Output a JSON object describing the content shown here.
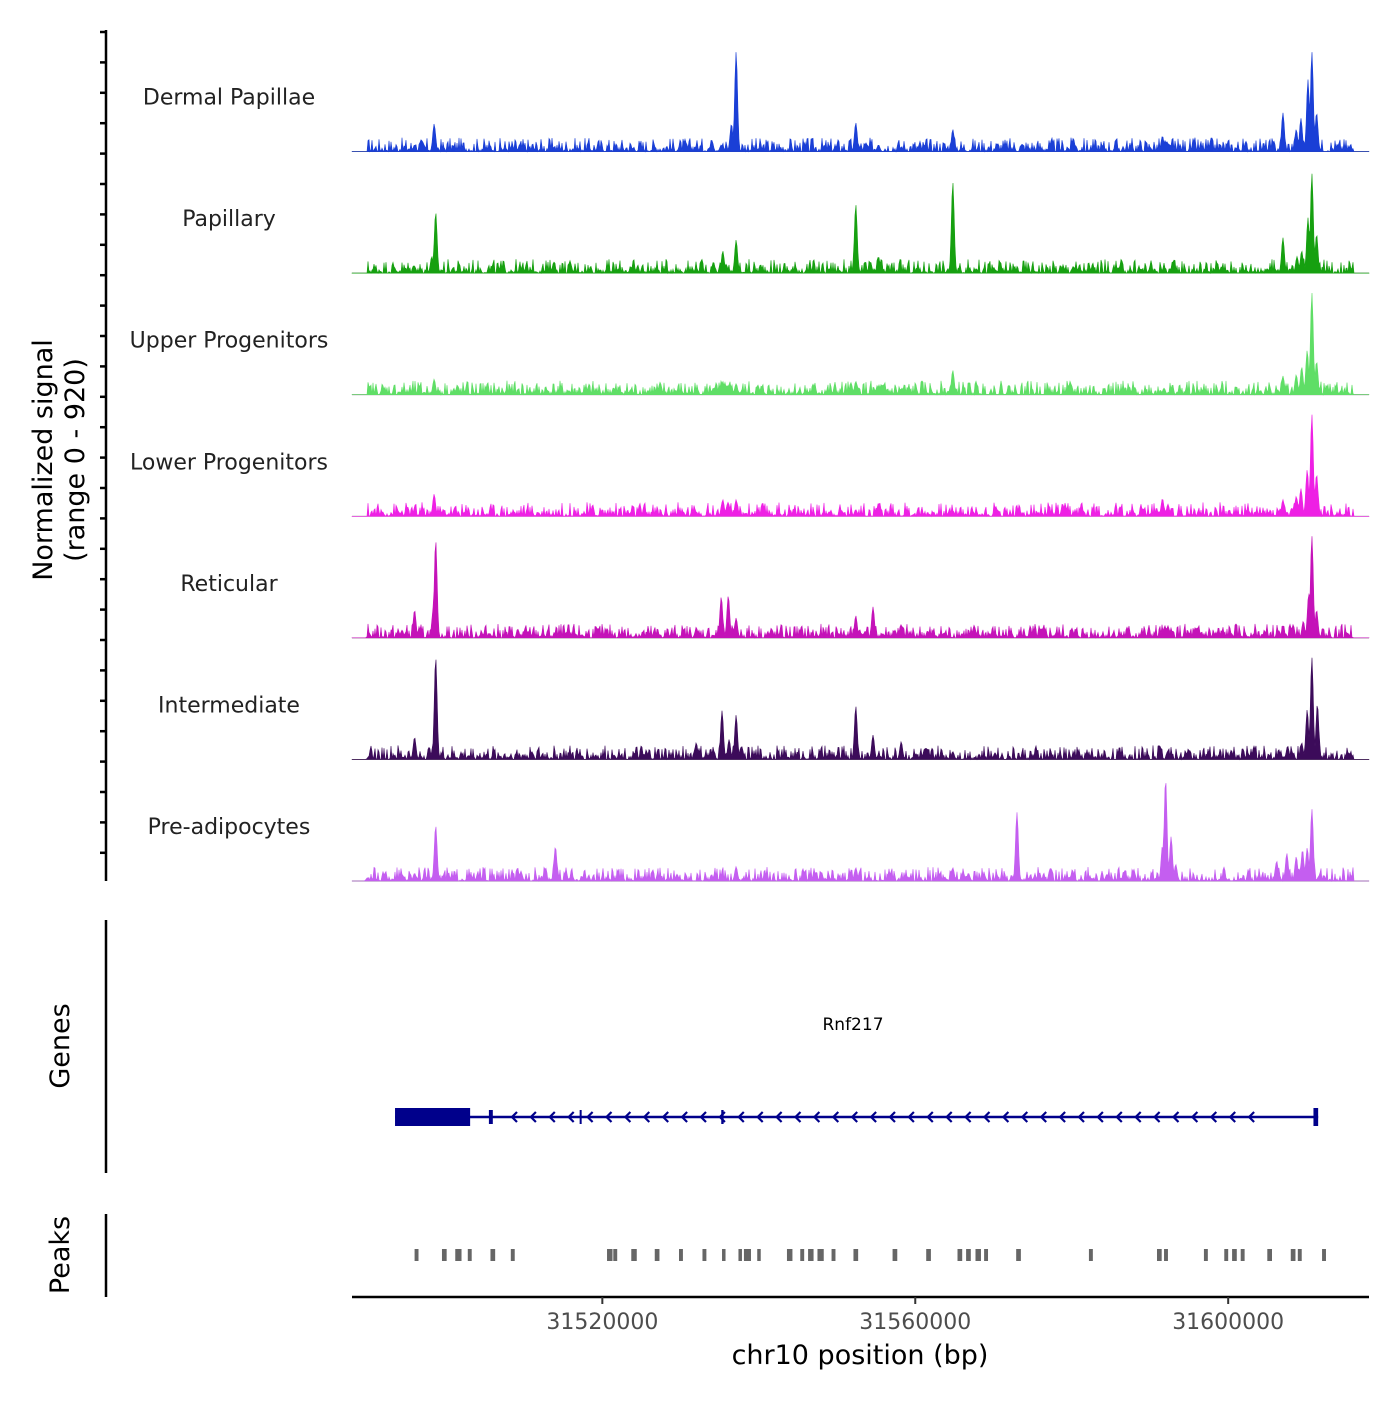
{
  "chart_data": {
    "type": "area",
    "title": "",
    "region": {
      "chrom": "chr10",
      "start": 31488000,
      "end": 31618000
    },
    "xlabel": "chr10 position (bp)",
    "x_ticks": [
      31520000,
      31560000,
      31600000
    ],
    "x_tick_labels": [
      "31520000",
      "31560000",
      "31600000"
    ],
    "ylabel_line1": "Normalized signal",
    "ylabel_line2": "(range 0 - 920)",
    "ylim": [
      0,
      920
    ],
    "tracks": [
      {
        "name": "Dermal Papillae",
        "color": "#1a3fd6",
        "peaks": [
          [
            31496000,
            60
          ],
          [
            31498500,
            250
          ],
          [
            31513800,
            40
          ],
          [
            31532000,
            50
          ],
          [
            31534000,
            100
          ],
          [
            31535200,
            60
          ],
          [
            31536500,
            250
          ],
          [
            31537100,
            900
          ],
          [
            31552400,
            260
          ],
          [
            31555300,
            60
          ],
          [
            31558200,
            40
          ],
          [
            31564800,
            200
          ],
          [
            31568000,
            25
          ],
          [
            31570500,
            40
          ],
          [
            31580200,
            120
          ],
          [
            31590000,
            40
          ],
          [
            31591600,
            140
          ],
          [
            31592600,
            60
          ],
          [
            31599000,
            30
          ],
          [
            31607000,
            350
          ],
          [
            31608700,
            200
          ],
          [
            31609300,
            300
          ],
          [
            31610200,
            650
          ],
          [
            31610700,
            900
          ],
          [
            31611300,
            350
          ]
        ]
      },
      {
        "name": "Papillary",
        "color": "#16a010",
        "peaks": [
          [
            31496000,
            60
          ],
          [
            31498200,
            150
          ],
          [
            31498700,
            550
          ],
          [
            31511000,
            30
          ],
          [
            31513800,
            100
          ],
          [
            31532000,
            50
          ],
          [
            31534200,
            100
          ],
          [
            31535400,
            200
          ],
          [
            31537100,
            300
          ],
          [
            31549000,
            40
          ],
          [
            31552400,
            620
          ],
          [
            31555300,
            150
          ],
          [
            31564800,
            820
          ],
          [
            31567800,
            40
          ],
          [
            31580200,
            60
          ],
          [
            31590000,
            40
          ],
          [
            31591800,
            60
          ],
          [
            31599000,
            30
          ],
          [
            31605000,
            40
          ],
          [
            31607000,
            320
          ],
          [
            31608800,
            150
          ],
          [
            31609400,
            200
          ],
          [
            31610200,
            500
          ],
          [
            31610700,
            900
          ],
          [
            31611300,
            350
          ]
        ]
      },
      {
        "name": "Upper Progenitors",
        "color": "#5fde66",
        "peaks": [
          [
            31498500,
            140
          ],
          [
            31534200,
            60
          ],
          [
            31535400,
            120
          ],
          [
            31537100,
            100
          ],
          [
            31552400,
            120
          ],
          [
            31555300,
            70
          ],
          [
            31558300,
            60
          ],
          [
            31564800,
            220
          ],
          [
            31591800,
            60
          ],
          [
            31607000,
            170
          ],
          [
            31608700,
            180
          ],
          [
            31609400,
            250
          ],
          [
            31610100,
            400
          ],
          [
            31610700,
            920
          ],
          [
            31611300,
            300
          ]
        ]
      },
      {
        "name": "Lower Progenitors",
        "color": "#ee20e4",
        "peaks": [
          [
            31496000,
            60
          ],
          [
            31498500,
            200
          ],
          [
            31532000,
            40
          ],
          [
            31535400,
            150
          ],
          [
            31537100,
            150
          ],
          [
            31549000,
            40
          ],
          [
            31552400,
            60
          ],
          [
            31555300,
            120
          ],
          [
            31564800,
            50
          ],
          [
            31591600,
            160
          ],
          [
            31592300,
            110
          ],
          [
            31607000,
            150
          ],
          [
            31608700,
            180
          ],
          [
            31609300,
            250
          ],
          [
            31610100,
            420
          ],
          [
            31610700,
            920
          ],
          [
            31611300,
            380
          ]
        ]
      },
      {
        "name": "Reticular",
        "color": "#c412b8",
        "peaks": [
          [
            31490200,
            40
          ],
          [
            31494400,
            70
          ],
          [
            31496000,
            250
          ],
          [
            31498400,
            280
          ],
          [
            31498700,
            880
          ],
          [
            31505600,
            40
          ],
          [
            31511000,
            30
          ],
          [
            31516500,
            40
          ],
          [
            31522500,
            30
          ],
          [
            31525800,
            40
          ],
          [
            31532000,
            80
          ],
          [
            31535200,
            370
          ],
          [
            31536100,
            380
          ],
          [
            31537100,
            180
          ],
          [
            31550200,
            40
          ],
          [
            31552400,
            200
          ],
          [
            31553600,
            60
          ],
          [
            31554600,
            280
          ],
          [
            31557400,
            70
          ],
          [
            31558200,
            120
          ],
          [
            31563600,
            40
          ],
          [
            31567800,
            40
          ],
          [
            31570200,
            40
          ],
          [
            31580200,
            40
          ],
          [
            31589000,
            40
          ],
          [
            31591600,
            70
          ],
          [
            31592300,
            110
          ],
          [
            31600400,
            40
          ],
          [
            31603300,
            40
          ],
          [
            31606500,
            60
          ],
          [
            31607300,
            40
          ],
          [
            31608300,
            120
          ],
          [
            31609600,
            150
          ],
          [
            31610300,
            400
          ],
          [
            31610700,
            920
          ],
          [
            31611300,
            250
          ],
          [
            31615300,
            40
          ]
        ]
      },
      {
        "name": "Intermediate",
        "color": "#3c0b5a",
        "peaks": [
          [
            31490200,
            30
          ],
          [
            31493400,
            30
          ],
          [
            31496000,
            200
          ],
          [
            31498400,
            150
          ],
          [
            31498700,
            920
          ],
          [
            31511000,
            70
          ],
          [
            31515800,
            50
          ],
          [
            31521500,
            40
          ],
          [
            31532000,
            150
          ],
          [
            31534200,
            80
          ],
          [
            31535300,
            440
          ],
          [
            31536200,
            180
          ],
          [
            31537100,
            400
          ],
          [
            31549400,
            30
          ],
          [
            31552400,
            480
          ],
          [
            31554600,
            220
          ],
          [
            31558200,
            160
          ],
          [
            31564800,
            70
          ],
          [
            31570200,
            60
          ],
          [
            31580200,
            40
          ],
          [
            31591300,
            120
          ],
          [
            31592300,
            80
          ],
          [
            31600400,
            80
          ],
          [
            31602500,
            60
          ],
          [
            31603300,
            120
          ],
          [
            31606500,
            70
          ],
          [
            31607600,
            120
          ],
          [
            31609400,
            150
          ],
          [
            31610100,
            450
          ],
          [
            31610700,
            920
          ],
          [
            31611400,
            500
          ],
          [
            31615300,
            60
          ]
        ]
      },
      {
        "name": "Pre-adipocytes",
        "color": "#c45ef0",
        "peaks": [
          [
            31490000,
            30
          ],
          [
            31494400,
            60
          ],
          [
            31496000,
            70
          ],
          [
            31497300,
            60
          ],
          [
            31498700,
            500
          ],
          [
            31514000,
            310
          ],
          [
            31527500,
            40
          ],
          [
            31535200,
            40
          ],
          [
            31537100,
            130
          ],
          [
            31549000,
            30
          ],
          [
            31552400,
            120
          ],
          [
            31556800,
            60
          ],
          [
            31559000,
            40
          ],
          [
            31564800,
            120
          ],
          [
            31566800,
            70
          ],
          [
            31568800,
            60
          ],
          [
            31573000,
            620
          ],
          [
            31575300,
            50
          ],
          [
            31584500,
            60
          ],
          [
            31591600,
            320
          ],
          [
            31592000,
            920
          ],
          [
            31592700,
            400
          ],
          [
            31593300,
            150
          ],
          [
            31606200,
            180
          ],
          [
            31607500,
            250
          ],
          [
            31608700,
            220
          ],
          [
            31609500,
            280
          ],
          [
            31610100,
            300
          ],
          [
            31610700,
            650
          ]
        ]
      }
    ],
    "gene": {
      "name": "Rnf217",
      "color": "#00008b",
      "start": 31493500,
      "end": 31611500,
      "strand": "-",
      "exons": [
        [
          31493500,
          31503100
        ],
        [
          31505500,
          31506000
        ],
        [
          31517100,
          31517300
        ],
        [
          31535200,
          31535500
        ],
        [
          31610900,
          31611500
        ]
      ]
    },
    "peaks_track": {
      "label": "Peaks",
      "color": "#666666",
      "regions": [
        [
          31496000,
          31496500
        ],
        [
          31499500,
          31500100
        ],
        [
          31501200,
          31502000
        ],
        [
          31502800,
          31503300
        ],
        [
          31505700,
          31506300
        ],
        [
          31508300,
          31508800
        ],
        [
          31520600,
          31521300
        ],
        [
          31521400,
          31521900
        ],
        [
          31523700,
          31524400
        ],
        [
          31526700,
          31527300
        ],
        [
          31529800,
          31530300
        ],
        [
          31532800,
          31533300
        ],
        [
          31535300,
          31535700
        ],
        [
          31537400,
          31537800
        ],
        [
          31538100,
          31539000
        ],
        [
          31539800,
          31540200
        ],
        [
          31543600,
          31544300
        ],
        [
          31545300,
          31545800
        ],
        [
          31546300,
          31547000
        ],
        [
          31547500,
          31548300
        ],
        [
          31549300,
          31549800
        ],
        [
          31552100,
          31552700
        ],
        [
          31557100,
          31557700
        ],
        [
          31561400,
          31562000
        ],
        [
          31565400,
          31566000
        ],
        [
          31566500,
          31567100
        ],
        [
          31567700,
          31568400
        ],
        [
          31568800,
          31569300
        ],
        [
          31572900,
          31573500
        ],
        [
          31582200,
          31582700
        ],
        [
          31590900,
          31591500
        ],
        [
          31591800,
          31592300
        ],
        [
          31596900,
          31597400
        ],
        [
          31599500,
          31600000
        ],
        [
          31600500,
          31601100
        ],
        [
          31601600,
          31602100
        ],
        [
          31605000,
          31605600
        ],
        [
          31608000,
          31608600
        ],
        [
          31608900,
          31609400
        ],
        [
          31612000,
          31612500
        ]
      ]
    },
    "panel_labels": {
      "genes": "Genes",
      "peaks": "Peaks"
    }
  }
}
